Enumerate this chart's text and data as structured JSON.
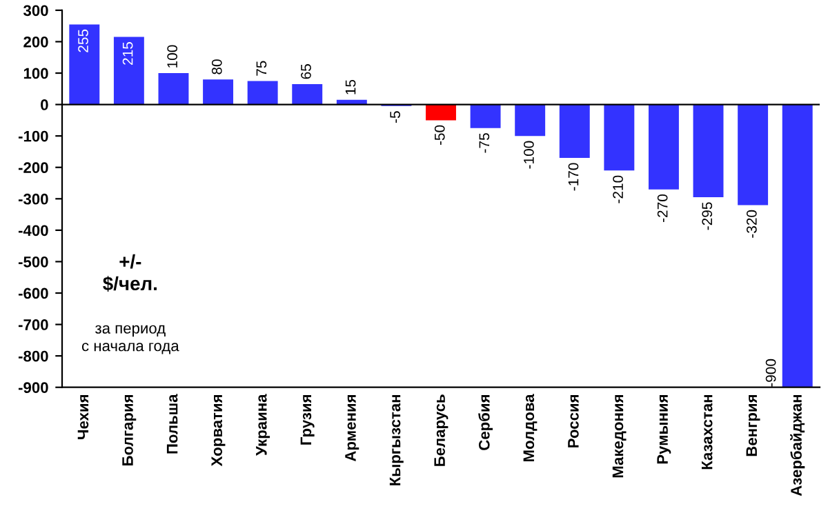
{
  "chart_data": {
    "type": "bar",
    "categories": [
      "Чехия",
      "Болгария",
      "Польша",
      "Хорватия",
      "Украина",
      "Грузия",
      "Армения",
      "Кыргызстан",
      "Беларусь",
      "Сербия",
      "Молдова",
      "Россия",
      "Македония",
      "Румыния",
      "Казахстан",
      "Венгрия",
      "Азербайджан"
    ],
    "values": [
      255,
      215,
      100,
      80,
      75,
      65,
      15,
      -5,
      -50,
      -75,
      -100,
      -170,
      -210,
      -270,
      -295,
      -320,
      -900
    ],
    "colors": [
      "#3333ff",
      "#3333ff",
      "#3333ff",
      "#3333ff",
      "#3333ff",
      "#3333ff",
      "#3333ff",
      "#3333ff",
      "#ff0000",
      "#3333ff",
      "#3333ff",
      "#3333ff",
      "#3333ff",
      "#3333ff",
      "#3333ff",
      "#3333ff",
      "#3333ff"
    ],
    "ylim": [
      -900,
      300
    ],
    "yticks": [
      -900,
      -800,
      -700,
      -600,
      -500,
      -400,
      -300,
      -200,
      -100,
      0,
      100,
      200,
      300
    ],
    "data_labels": true,
    "legend": false,
    "annotations": [
      "+/-\n$/чел.",
      "за период\nс начала года"
    ]
  }
}
